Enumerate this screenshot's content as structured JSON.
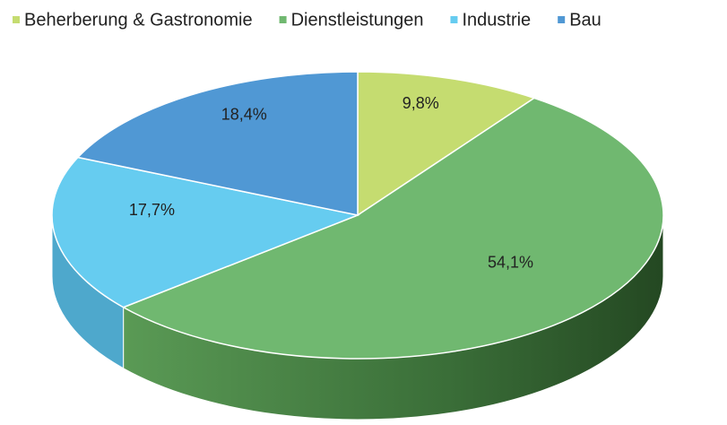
{
  "chart_data": {
    "type": "pie",
    "categories": [
      "Beherberung & Gastronomie",
      "Dienstleistungen",
      "Industrie",
      "Bau"
    ],
    "values": [
      9.8,
      54.1,
      17.7,
      18.4
    ],
    "value_labels": [
      "9,8%",
      "54,1%",
      "17,7%",
      "18,4%"
    ],
    "colors": [
      "#c5dc70",
      "#70b870",
      "#66ccf0",
      "#5098d4"
    ],
    "legend": "top"
  }
}
